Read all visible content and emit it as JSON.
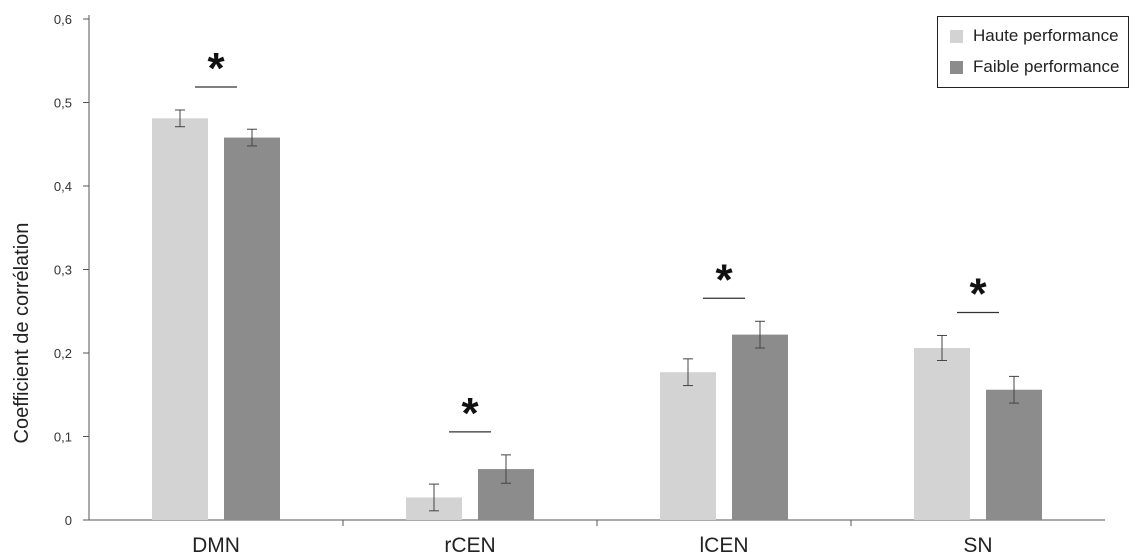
{
  "chart_data": {
    "type": "bar",
    "title": "",
    "xlabel": "",
    "ylabel": "Coefficient de corrélation",
    "ylim": [
      0,
      0.6
    ],
    "yticks": [
      "0",
      "0,1",
      "0,2",
      "0,3",
      "0,4",
      "0,5",
      "0,6"
    ],
    "categories": [
      "DMN",
      "rCEN",
      "lCEN",
      "SN"
    ],
    "series": [
      {
        "name": "Haute performance",
        "color": "#d3d3d3",
        "values": [
          0.481,
          0.027,
          0.177,
          0.206
        ],
        "errors": [
          0.01,
          0.016,
          0.016,
          0.015
        ]
      },
      {
        "name": "Faible performance",
        "color": "#8c8c8c",
        "values": [
          0.458,
          0.061,
          0.222,
          0.156
        ],
        "errors": [
          0.01,
          0.017,
          0.016,
          0.016
        ]
      }
    ],
    "significance": [
      "*",
      "*",
      "*",
      "*"
    ],
    "grid": false,
    "legend_position": "top-right"
  }
}
